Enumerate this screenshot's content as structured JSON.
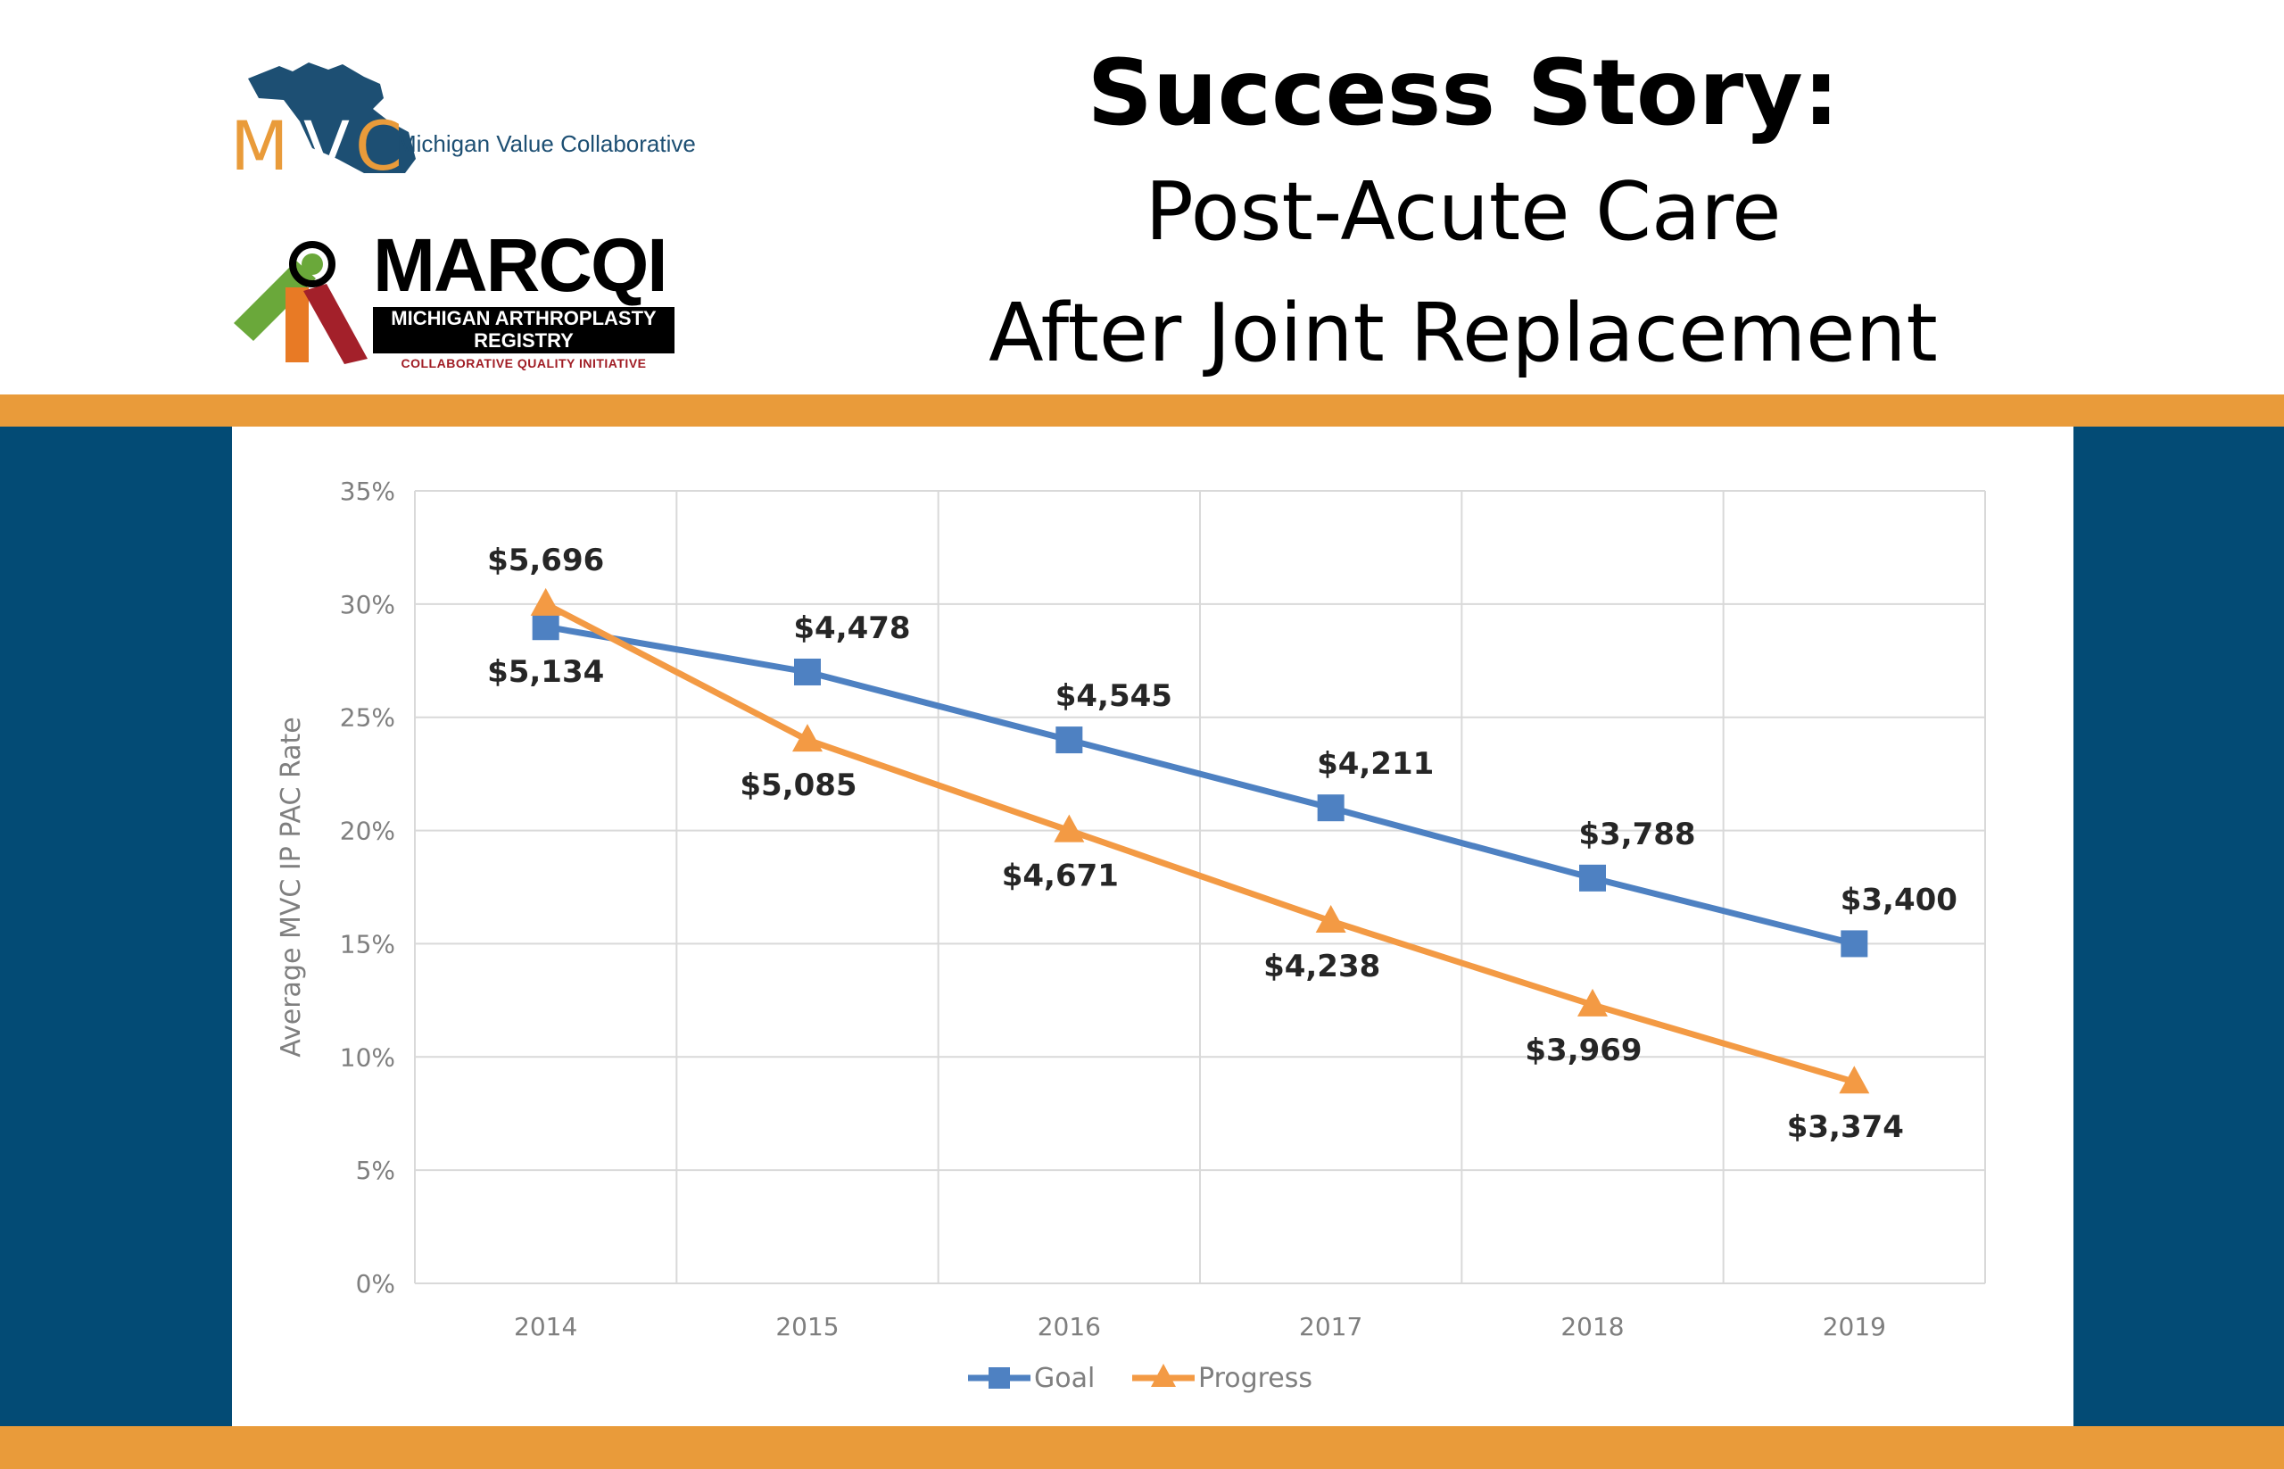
{
  "header": {
    "title": "Success Story:",
    "subtitle_line1": "Post-Acute Care",
    "subtitle_line2": "After Joint Replacement"
  },
  "logos": {
    "mvc": {
      "text": "Michigan Value Collaborative",
      "letters_m": "M",
      "letters_v": "V",
      "letters_c": "C",
      "icon": "michigan-map-icon"
    },
    "marcqi": {
      "name": "MARCQI",
      "line1": "MICHIGAN ARTHROPLASTY",
      "line2": "REGISTRY",
      "tagline": "COLLABORATIVE QUALITY INITIATIVE",
      "icon": "figure-emblem-icon"
    }
  },
  "colors": {
    "orange": "#e99b3a",
    "navy": "#034b75",
    "goal": "#4e81c2",
    "progress": "#f39a44"
  },
  "chart_data": {
    "type": "line",
    "categories": [
      "2014",
      "2015",
      "2016",
      "2017",
      "2018",
      "2019"
    ],
    "ylabel": "Average MVC IP PAC Rate",
    "ylim": [
      0,
      35
    ],
    "yticks": [
      "0%",
      "5%",
      "10%",
      "15%",
      "20%",
      "25%",
      "30%",
      "35%"
    ],
    "grid": true,
    "legend_position": "bottom",
    "series": [
      {
        "name": "Goal",
        "marker": "square",
        "values": [
          29,
          27,
          24,
          21,
          17.9,
          15
        ],
        "labels": [
          "$5,134",
          "$4,478",
          "$4,545",
          "$4,211",
          "$3,788",
          "$3,400"
        ]
      },
      {
        "name": "Progress",
        "marker": "triangle",
        "values": [
          30,
          24,
          20,
          16,
          12.3,
          8.9
        ],
        "labels": [
          "$5,696",
          "$5,085",
          "$4,671",
          "$4,238",
          "$3,969",
          "$3,374"
        ]
      }
    ]
  }
}
